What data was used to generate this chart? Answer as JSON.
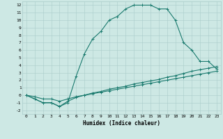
{
  "xlabel": "Humidex (Indice chaleur)",
  "bg_color": "#cde8e4",
  "grid_color": "#aaccca",
  "line_color": "#1a7a6e",
  "xlim": [
    -0.5,
    23.5
  ],
  "ylim": [
    -2.5,
    12.5
  ],
  "xticks": [
    0,
    1,
    2,
    3,
    4,
    5,
    6,
    7,
    8,
    9,
    10,
    11,
    12,
    13,
    14,
    15,
    16,
    17,
    18,
    19,
    20,
    21,
    22,
    23
  ],
  "yticks": [
    -2,
    -1,
    0,
    1,
    2,
    3,
    4,
    5,
    6,
    7,
    8,
    9,
    10,
    11,
    12
  ],
  "line1_y": [
    0.0,
    -0.5,
    -1.0,
    -1.0,
    -1.5,
    -1.0,
    2.5,
    5.5,
    7.5,
    8.5,
    10.0,
    10.5,
    11.5,
    12.0,
    12.0,
    12.0,
    11.5,
    11.5,
    10.0,
    7.0,
    6.0,
    4.5,
    4.5,
    3.5
  ],
  "line2_y": [
    0.0,
    -0.5,
    -1.0,
    -1.0,
    -1.5,
    -0.8,
    -0.3,
    0.0,
    0.3,
    0.5,
    0.8,
    1.0,
    1.2,
    1.5,
    1.7,
    1.9,
    2.1,
    2.4,
    2.6,
    2.9,
    3.2,
    3.4,
    3.6,
    3.8
  ],
  "line3_y": [
    0.0,
    -0.2,
    -0.5,
    -0.5,
    -0.8,
    -0.5,
    -0.2,
    0.0,
    0.2,
    0.4,
    0.6,
    0.8,
    1.0,
    1.2,
    1.4,
    1.6,
    1.8,
    2.0,
    2.2,
    2.4,
    2.6,
    2.8,
    3.0,
    3.2
  ],
  "marker": "+",
  "markersize": 3,
  "linewidth": 0.8,
  "xlabel_fontsize": 5.5,
  "tick_fontsize": 4.5
}
